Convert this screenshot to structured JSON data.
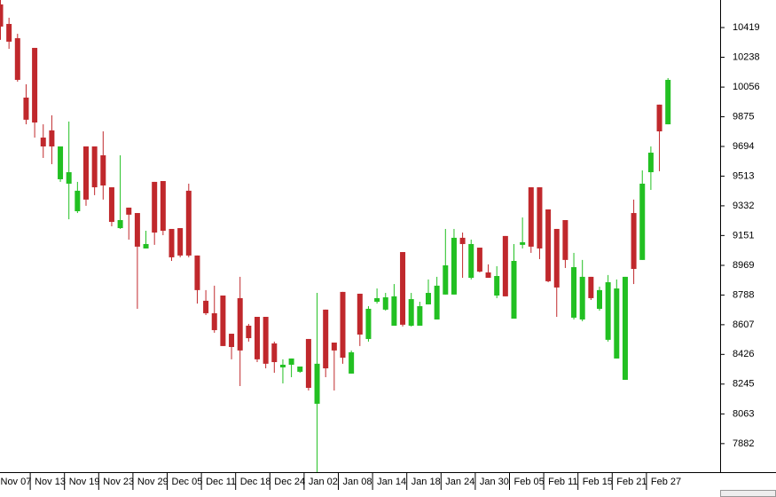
{
  "chart_data": {
    "type": "candlestick",
    "categories": [
      "Nov 07",
      null,
      null,
      null,
      "Nov 13",
      null,
      null,
      null,
      "Nov 19",
      null,
      null,
      null,
      "Nov 23",
      null,
      null,
      null,
      "Nov 29",
      null,
      null,
      null,
      "Dec 05",
      null,
      null,
      null,
      "Dec 11",
      null,
      null,
      null,
      "Dec 18",
      null,
      null,
      null,
      "Dec 24",
      null,
      null,
      null,
      "Jan 02",
      null,
      null,
      null,
      "Jan 08",
      null,
      null,
      null,
      "Jan 14",
      null,
      null,
      null,
      "Jan 18",
      null,
      null,
      null,
      "Jan 24",
      null,
      null,
      null,
      "Jan 30",
      null,
      null,
      null,
      "Feb 05",
      null,
      null,
      null,
      "Feb 11",
      null,
      null,
      null,
      "Feb 15",
      null,
      null,
      null,
      "Feb 21",
      null,
      null,
      null,
      "Feb 27",
      null,
      null
    ],
    "open": [
      10560,
      10441,
      10354,
      9992,
      10295,
      9748,
      9792,
      9494,
      9467,
      9299,
      9694,
      9694,
      9640,
      9445,
      9196,
      9321,
      9288,
      9072,
      9478,
      9483,
      9191,
      9196,
      9424,
      9029,
      8753,
      8677,
      8785,
      8552,
      8769,
      8601,
      8655,
      8655,
      8493,
      8347,
      8363,
      8320,
      8520,
      8125,
      8699,
      8498,
      8807,
      8309,
      8796,
      8520,
      8747,
      8699,
      8601,
      9050,
      8601,
      8601,
      8731,
      8639,
      8791,
      8791,
      9137,
      8893,
      9077,
      8926,
      8785,
      9148,
      8644,
      9094,
      9445,
      9445,
      9310,
      9191,
      9245,
      8650,
      8639,
      8899,
      8704,
      8515,
      8401,
      8271,
      9288,
      9002,
      9537,
      9949,
      9829
    ],
    "high": [
      10587,
      10479,
      10381,
      10073,
      10295,
      9829,
      9884,
      9694,
      9846,
      9478,
      9694,
      9694,
      9786,
      9445,
      9640,
      9321,
      9288,
      9180,
      9478,
      9483,
      9191,
      9196,
      9467,
      9029,
      8818,
      8845,
      8785,
      8552,
      8899,
      8612,
      8655,
      8655,
      8504,
      8396,
      8401,
      8352,
      8520,
      8801,
      8699,
      8498,
      8807,
      8450,
      8796,
      8720,
      8828,
      8801,
      8855,
      9050,
      8801,
      8747,
      8883,
      8899,
      9191,
      9191,
      9169,
      9126,
      9077,
      8975,
      8964,
      9148,
      9099,
      9261,
      9445,
      9445,
      9310,
      9191,
      9245,
      9045,
      9002,
      8899,
      8839,
      8910,
      8883,
      8899,
      9370,
      9548,
      9694,
      9949,
      10111
    ],
    "low": [
      10344,
      10289,
      10089,
      9829,
      9748,
      9624,
      9586,
      9478,
      9250,
      9288,
      9332,
      9397,
      9370,
      9207,
      9191,
      9126,
      8704,
      9072,
      9094,
      9153,
      8996,
      9018,
      9018,
      8736,
      8666,
      8558,
      8477,
      8396,
      8233,
      8504,
      8379,
      8341,
      8314,
      8249,
      8287,
      8314,
      8206,
      7708,
      8287,
      8206,
      8369,
      8309,
      8477,
      8504,
      8736,
      8693,
      8601,
      8596,
      8596,
      8601,
      8731,
      8639,
      8791,
      8791,
      8893,
      8883,
      8926,
      8893,
      8769,
      8780,
      8644,
      9072,
      9045,
      9007,
      8866,
      8655,
      8953,
      8639,
      8628,
      8758,
      8693,
      8504,
      8401,
      8271,
      8855,
      9002,
      9429,
      9543,
      9829
    ],
    "close": [
      10425,
      10333,
      10100,
      9857,
      9840,
      9694,
      9694,
      9694,
      9537,
      9424,
      9370,
      9445,
      9456,
      9234,
      9245,
      9278,
      9083,
      9099,
      9169,
      9180,
      9018,
      9029,
      9029,
      8818,
      8677,
      8574,
      8477,
      8471,
      8450,
      8525,
      8396,
      8369,
      8379,
      8363,
      8401,
      8352,
      8222,
      8369,
      8341,
      8450,
      8406,
      8439,
      8547,
      8704,
      8769,
      8774,
      8780,
      8607,
      8763,
      8720,
      8801,
      8845,
      8969,
      9137,
      9099,
      9099,
      8931,
      8893,
      8904,
      8780,
      8996,
      9110,
      9083,
      9072,
      8872,
      8834,
      9002,
      8958,
      8899,
      8769,
      8818,
      8866,
      8828,
      8899,
      8947,
      9467,
      9656,
      9786,
      10100
    ],
    "up_color": "#22c022",
    "down_color": "#c0282c",
    "ylim": [
      7708,
      10587
    ],
    "yticks": [
      7882,
      8063,
      8245,
      8426,
      8607,
      8788,
      8969,
      9151,
      9332,
      9513,
      9694,
      9875,
      10056,
      10238,
      10419
    ]
  }
}
